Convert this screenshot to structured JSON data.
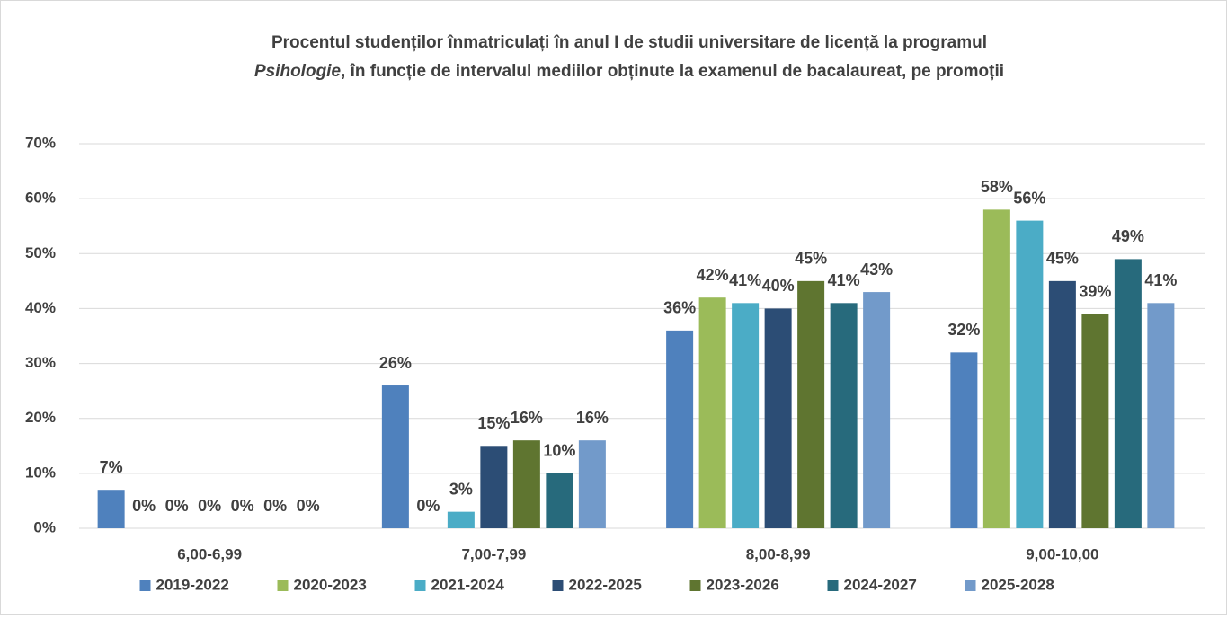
{
  "chart_data": {
    "type": "bar",
    "title": [
      "Procentul studenților înmatriculați în anul I de studii universitare de licență la programul",
      "Psihologie",
      ", în funcție de intervalul mediilor obținute la examenul de bacalaureat, pe promoții"
    ],
    "categories": [
      "6,00-6,99",
      "7,00-7,99",
      "8,00-8,99",
      "9,00-10,00"
    ],
    "series": [
      {
        "name": "2019-2022",
        "color": "#4f81bd",
        "values": [
          7,
          26,
          36,
          32
        ],
        "value_labels": [
          "7%",
          "26%",
          "36%",
          "32%"
        ]
      },
      {
        "name": "2020-2023",
        "color": "#9bbb59",
        "values": [
          0,
          0,
          42,
          58
        ],
        "value_labels": [
          "0%",
          "0%",
          "42%",
          "58%"
        ]
      },
      {
        "name": "2021-2024",
        "color": "#4bacc6",
        "values": [
          0,
          3,
          41,
          56
        ],
        "value_labels": [
          "0%",
          "3%",
          "41%",
          "56%"
        ]
      },
      {
        "name": "2022-2025",
        "color": "#2c4d75",
        "values": [
          0,
          15,
          40,
          45
        ],
        "value_labels": [
          "0%",
          "15%",
          "40%",
          "45%"
        ]
      },
      {
        "name": "2023-2026",
        "color": "#5f7530",
        "values": [
          0,
          16,
          45,
          39
        ],
        "value_labels": [
          "0%",
          "16%",
          "45%",
          "39%"
        ]
      },
      {
        "name": "2024-2027",
        "color": "#276a7c",
        "values": [
          0,
          10,
          41,
          49
        ],
        "value_labels": [
          "0%",
          "10%",
          "41%",
          "49%"
        ]
      },
      {
        "name": "2025-2028",
        "color": "#729aca",
        "values": [
          0,
          16,
          43,
          41
        ],
        "value_labels": [
          "0%",
          "16%",
          "43%",
          "41%"
        ]
      }
    ],
    "ylim": [
      0,
      70
    ],
    "yticks": [
      {
        "value": 0,
        "label": "0%"
      },
      {
        "value": 10,
        "label": "10%"
      },
      {
        "value": 20,
        "label": "20%"
      },
      {
        "value": 30,
        "label": "30%"
      },
      {
        "value": 40,
        "label": "40%"
      },
      {
        "value": 50,
        "label": "50%"
      },
      {
        "value": 60,
        "label": "60%"
      },
      {
        "value": 70,
        "label": "70%"
      }
    ],
    "grid": true,
    "legend": "bottom"
  }
}
